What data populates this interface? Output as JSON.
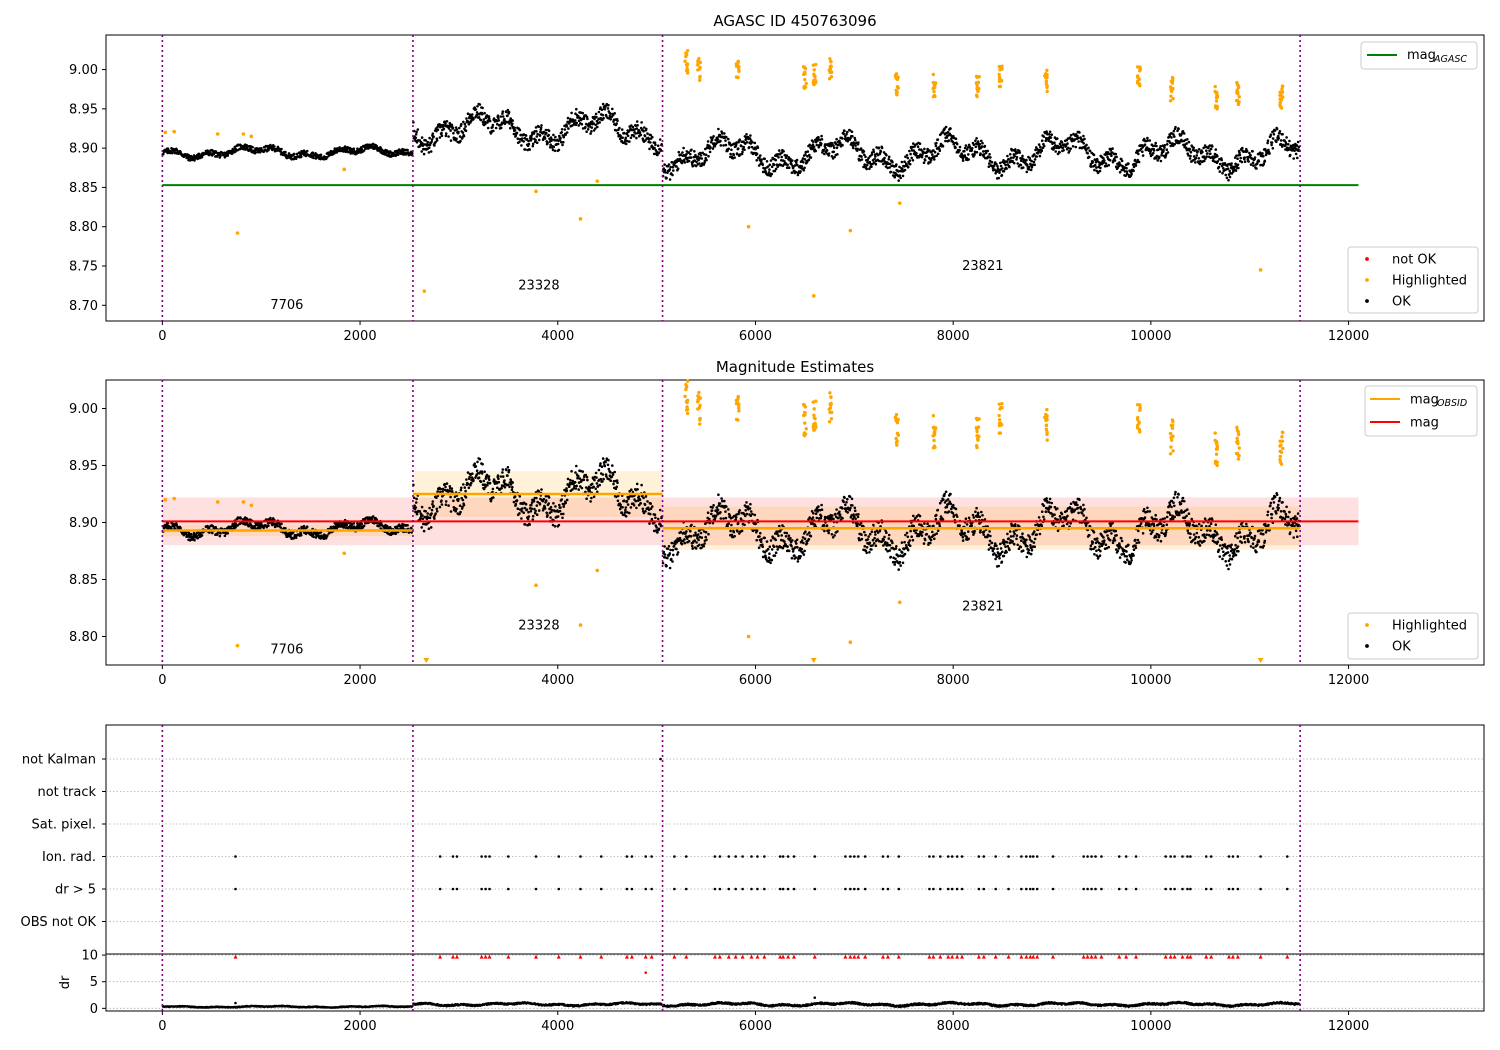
{
  "figure": {
    "title": "AGASC ID 450763096"
  },
  "chart_data": [
    {
      "type": "scatter",
      "title": "AGASC ID 450763096",
      "xlabel": "",
      "ylabel": "",
      "xlim": [
        -570,
        13370
      ],
      "ylim": [
        8.68,
        9.044
      ],
      "x_ticks": [
        0,
        2000,
        4000,
        6000,
        8000,
        10000,
        12000
      ],
      "x_tick_labels": [
        "0",
        "2000",
        "4000",
        "6000",
        "8000",
        "10000",
        "12000"
      ],
      "y_ticks": [
        8.7,
        8.75,
        8.8,
        8.85,
        8.9,
        8.95,
        9.0
      ],
      "y_tick_labels": [
        "8.70",
        "8.75",
        "8.80",
        "8.85",
        "8.90",
        "8.95",
        "9.00"
      ],
      "grid": false,
      "obsid_boundaries": [
        0,
        2535,
        5060,
        11510
      ],
      "obsid_labels": [
        {
          "text": "7706",
          "x": 1260,
          "y": 8.695
        },
        {
          "text": "23328",
          "x": 3810,
          "y": 8.72
        },
        {
          "text": "23821",
          "x": 8300,
          "y": 8.745
        }
      ],
      "lines": [
        {
          "name": "mag_AGASC",
          "color": "#008000",
          "x": [
            0,
            12100
          ],
          "y": [
            8.853,
            8.853
          ]
        }
      ],
      "segments": [
        {
          "x0": 0,
          "x1": 2535,
          "mean": 8.895,
          "amp": 0.008
        },
        {
          "x0": 2535,
          "x1": 5060,
          "mean": 8.925,
          "amp": 0.024
        },
        {
          "x0": 5060,
          "x1": 11510,
          "mean": 8.893,
          "amp": 0.024
        }
      ],
      "highlighted_points": [
        [
          30,
          8.92
        ],
        [
          120,
          8.921
        ],
        [
          560,
          8.918
        ],
        [
          760,
          8.792
        ],
        [
          820,
          8.918
        ],
        [
          900,
          8.915
        ],
        [
          1840,
          8.873
        ],
        [
          2650,
          8.718
        ],
        [
          3780,
          8.845
        ],
        [
          4230,
          8.81
        ],
        [
          4400,
          8.858
        ],
        [
          5930,
          8.8
        ],
        [
          6590,
          8.712
        ],
        [
          6960,
          8.795
        ],
        [
          7460,
          8.83
        ],
        [
          11110,
          8.745
        ]
      ],
      "highlighted_clusters": [
        [
          5300,
          9.01
        ],
        [
          5430,
          9.0
        ],
        [
          5820,
          9.0
        ],
        [
          6500,
          8.99
        ],
        [
          6600,
          8.992
        ],
        [
          6760,
          9.0
        ],
        [
          7430,
          8.98
        ],
        [
          7810,
          8.98
        ],
        [
          8250,
          8.98
        ],
        [
          8480,
          8.99
        ],
        [
          8940,
          8.985
        ],
        [
          9880,
          8.99
        ],
        [
          10210,
          8.975
        ],
        [
          10660,
          8.965
        ],
        [
          10880,
          8.97
        ],
        [
          11320,
          8.965
        ]
      ],
      "legend_top": [
        {
          "label": "mag",
          "subscript": "AGASC",
          "color": "#008000"
        }
      ],
      "legend_bottom": [
        {
          "label": "not OK",
          "color": "#ff0000"
        },
        {
          "label": "Highlighted",
          "color": "#ffa500"
        },
        {
          "label": "OK",
          "color": "#000000"
        }
      ]
    },
    {
      "type": "scatter",
      "title": "Magnitude Estimates",
      "xlabel": "",
      "ylabel": "",
      "xlim": [
        -570,
        13370
      ],
      "ylim": [
        8.775,
        9.025
      ],
      "x_ticks": [
        0,
        2000,
        4000,
        6000,
        8000,
        10000,
        12000
      ],
      "x_tick_labels": [
        "0",
        "2000",
        "4000",
        "6000",
        "8000",
        "10000",
        "12000"
      ],
      "y_ticks": [
        8.8,
        8.85,
        8.9,
        8.95,
        9.0
      ],
      "y_tick_labels": [
        "8.80",
        "8.85",
        "8.90",
        "8.95",
        "9.00"
      ],
      "grid": false,
      "obsid_boundaries": [
        0,
        2535,
        5060,
        11510
      ],
      "obsid_labels": [
        {
          "text": "7706",
          "x": 1260,
          "y": 8.785
        },
        {
          "text": "23328",
          "x": 3810,
          "y": 8.806
        },
        {
          "text": "23821",
          "x": 8300,
          "y": 8.823
        }
      ],
      "mag_line": {
        "name": "mag",
        "color": "#ff0000",
        "x": [
          0,
          12100
        ],
        "y": 8.901,
        "band": [
          8.88,
          8.922
        ]
      },
      "obsid_mags": [
        {
          "x0": 0,
          "x1": 2535,
          "y": 8.893,
          "band": [
            8.888,
            8.898
          ]
        },
        {
          "x0": 2535,
          "x1": 5060,
          "y": 8.925,
          "band": [
            8.905,
            8.945
          ]
        },
        {
          "x0": 5060,
          "x1": 11510,
          "y": 8.895,
          "band": [
            8.876,
            8.914
          ]
        }
      ],
      "segments": [
        {
          "x0": 0,
          "x1": 2535,
          "mean": 8.895,
          "amp": 0.008
        },
        {
          "x0": 2535,
          "x1": 5060,
          "mean": 8.925,
          "amp": 0.024
        },
        {
          "x0": 5060,
          "x1": 11510,
          "mean": 8.893,
          "amp": 0.024
        }
      ],
      "highlighted_points": [
        [
          30,
          8.92
        ],
        [
          120,
          8.921
        ],
        [
          560,
          8.918
        ],
        [
          760,
          8.792
        ],
        [
          820,
          8.918
        ],
        [
          900,
          8.915
        ],
        [
          1840,
          8.873
        ],
        [
          3780,
          8.845
        ],
        [
          4230,
          8.81
        ],
        [
          4400,
          8.858
        ],
        [
          5930,
          8.8
        ],
        [
          6960,
          8.795
        ],
        [
          7460,
          8.83
        ]
      ],
      "offscale_markers": [
        2670,
        6590,
        11110
      ],
      "highlighted_clusters": [
        [
          5300,
          9.01
        ],
        [
          5430,
          9.0
        ],
        [
          5820,
          9.0
        ],
        [
          6500,
          8.99
        ],
        [
          6600,
          8.992
        ],
        [
          6760,
          9.0
        ],
        [
          7430,
          8.98
        ],
        [
          7810,
          8.98
        ],
        [
          8250,
          8.98
        ],
        [
          8480,
          8.99
        ],
        [
          8940,
          8.985
        ],
        [
          9880,
          8.99
        ],
        [
          10210,
          8.975
        ],
        [
          10660,
          8.965
        ],
        [
          10880,
          8.97
        ],
        [
          11320,
          8.965
        ]
      ],
      "legend_top": [
        {
          "label": "mag",
          "subscript": "OBSID",
          "color": "#ffa500"
        },
        {
          "label": "mag",
          "subscript": "",
          "color": "#ff0000"
        }
      ],
      "legend_bottom": [
        {
          "label": "Highlighted",
          "color": "#ffa500"
        },
        {
          "label": "OK",
          "color": "#000000"
        }
      ]
    },
    {
      "type": "scatter",
      "title": "",
      "xlim": [
        -570,
        13370
      ],
      "flag_categories": [
        "not Kalman",
        "not track",
        "Sat. pixel.",
        "Ion. rad.",
        "dr > 5",
        "OBS not OK"
      ],
      "flag_hits": {
        "not Kalman": [
          5040
        ],
        "Ion. rad.": [
          740,
          2810,
          2940,
          2980,
          3230,
          3270,
          3310,
          3500,
          3780,
          4010,
          4230,
          4440,
          4700,
          4750,
          4890,
          4950,
          5180,
          5300,
          5590,
          5640,
          5730,
          5800,
          5870,
          5960,
          6020,
          6090,
          6250,
          6280,
          6330,
          6390,
          6600,
          6910,
          6960,
          7000,
          7040,
          7110,
          7290,
          7340,
          7450,
          7760,
          7800,
          7870,
          7950,
          7990,
          8040,
          8090,
          8260,
          8310,
          8430,
          8560,
          8690,
          8740,
          8780,
          8810,
          8850,
          9010,
          9320,
          9360,
          9400,
          9440,
          9500,
          9680,
          9750,
          9850,
          10150,
          10200,
          10240,
          10320,
          10370,
          10400,
          10560,
          10610,
          10790,
          10830,
          10880,
          11110,
          11380
        ],
        "dr > 5": [
          740,
          2810,
          2940,
          2980,
          3230,
          3270,
          3310,
          3500,
          3780,
          4010,
          4230,
          4440,
          4700,
          4750,
          4890,
          4950,
          5180,
          5300,
          5590,
          5640,
          5730,
          5800,
          5870,
          5960,
          6020,
          6090,
          6250,
          6280,
          6330,
          6390,
          6600,
          6910,
          6960,
          7000,
          7040,
          7110,
          7290,
          7340,
          7450,
          7760,
          7800,
          7870,
          7950,
          7990,
          8040,
          8090,
          8260,
          8310,
          8430,
          8560,
          8690,
          8740,
          8780,
          8810,
          8850,
          9010,
          9320,
          9360,
          9400,
          9440,
          9500,
          9680,
          9750,
          9850,
          10150,
          10200,
          10240,
          10320,
          10370,
          10400,
          10560,
          10610,
          10790,
          10830,
          10880,
          11110,
          11380
        ]
      },
      "obsid_boundaries": [
        0,
        2535,
        5060,
        11510
      ]
    },
    {
      "type": "scatter",
      "title": "",
      "xlabel": "",
      "ylabel": "dr",
      "xlim": [
        -570,
        13370
      ],
      "ylim": [
        -0.5,
        10.2
      ],
      "x_ticks": [
        0,
        2000,
        4000,
        6000,
        8000,
        10000,
        12000
      ],
      "x_tick_labels": [
        "0",
        "2000",
        "4000",
        "6000",
        "8000",
        "10000",
        "12000"
      ],
      "y_ticks": [
        0,
        5,
        10
      ],
      "y_tick_labels": [
        "0",
        "5",
        "10"
      ],
      "grid": true,
      "obsid_boundaries": [
        0,
        2535,
        5060,
        11510
      ],
      "segments": [
        {
          "x0": 0,
          "x1": 2535,
          "mean": 0.3,
          "amp": 0.15
        },
        {
          "x0": 2535,
          "x1": 5060,
          "mean": 0.75,
          "amp": 0.3
        },
        {
          "x0": 5060,
          "x1": 11510,
          "mean": 0.75,
          "amp": 0.35
        }
      ],
      "clipped_marker_y": 9.7,
      "extra_points": [
        [
          4890,
          6.7
        ],
        [
          740,
          1.0
        ],
        [
          6600,
          2.0
        ]
      ]
    }
  ],
  "colors": {
    "ok": "#000000",
    "highlighted": "#ffa500",
    "not_ok": "#ff0000",
    "obsid_line": "#800080",
    "agasc": "#008000",
    "grid": "#b0b0b0"
  }
}
